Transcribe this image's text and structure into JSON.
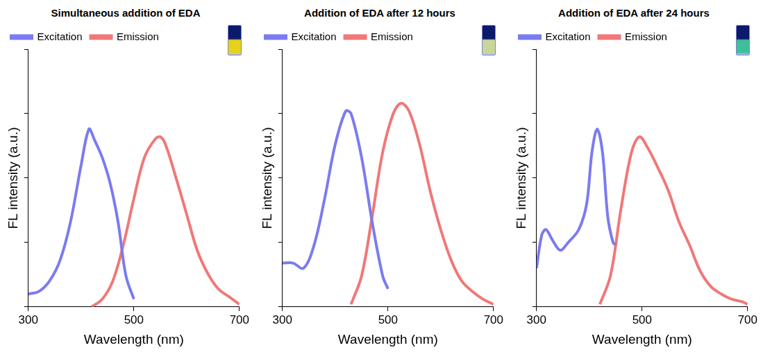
{
  "chart_data": [
    {
      "type": "line",
      "title": "Simultaneous addition of EDA",
      "x_label": "Wavelength (nm)",
      "y_label": "FL intensity (a.u.)",
      "xlim": [
        300,
        700
      ],
      "xticks": [
        300,
        500,
        700
      ],
      "ylim": [
        0,
        100
      ],
      "yticks": [
        0,
        25,
        50,
        75,
        100
      ],
      "tick_labels": "x",
      "grid": false,
      "legend": "top",
      "series": [
        {
          "name": "Excitation",
          "color": "#7b7bf0",
          "x": [
            300,
            320,
            340,
            360,
            380,
            400,
            415,
            425,
            440,
            455,
            470,
            485,
            500
          ],
          "values": [
            5,
            6,
            10,
            18,
            33,
            55,
            69,
            65,
            58,
            48,
            33,
            12,
            3
          ]
        },
        {
          "name": "Emission",
          "color": "#f07878",
          "x": [
            420,
            440,
            460,
            480,
            500,
            520,
            540,
            550,
            560,
            580,
            600,
            620,
            640,
            660,
            680,
            700
          ],
          "values": [
            0,
            3,
            10,
            24,
            42,
            58,
            65,
            66,
            63,
            50,
            36,
            22,
            13,
            7,
            4,
            1
          ]
        }
      ]
    },
    {
      "type": "line",
      "title": "Addition of EDA after 12 hours",
      "x_label": "Wavelength (nm)",
      "y_label": "FL intensity (a.u.)",
      "xlim": [
        300,
        700
      ],
      "xticks": [
        300,
        500,
        700
      ],
      "ylim": [
        0,
        100
      ],
      "yticks": [
        0,
        25,
        50,
        75,
        100
      ],
      "tick_labels": "x",
      "grid": false,
      "legend": "top",
      "series": [
        {
          "name": "Excitation",
          "color": "#7b7bf0",
          "x": [
            300,
            320,
            340,
            360,
            380,
            400,
            420,
            430,
            450,
            470,
            490,
            500
          ],
          "values": [
            17,
            17,
            15,
            24,
            42,
            63,
            76,
            75,
            58,
            33,
            12,
            7
          ]
        },
        {
          "name": "Emission",
          "color": "#f07878",
          "x": [
            430,
            450,
            470,
            490,
            510,
            525,
            540,
            560,
            580,
            600,
            620,
            640,
            660,
            680,
            700
          ],
          "values": [
            1,
            12,
            35,
            60,
            75,
            79,
            76,
            63,
            45,
            30,
            18,
            10,
            6,
            3,
            1
          ]
        }
      ]
    },
    {
      "type": "line",
      "title": "Addition of EDA after 24 hours",
      "x_label": "Wavelength (nm)",
      "y_label": "FL intensity (a.u.)",
      "xlim": [
        300,
        700
      ],
      "xticks": [
        300,
        500,
        700
      ],
      "ylim": [
        0,
        100
      ],
      "yticks": [
        0,
        25,
        50,
        75,
        100
      ],
      "tick_labels": "x",
      "grid": false,
      "legend": "top",
      "series": [
        {
          "name": "Excitation",
          "color": "#7b7bf0",
          "x": [
            300,
            310,
            318,
            330,
            345,
            360,
            380,
            395,
            405,
            415,
            425,
            435,
            445,
            450
          ],
          "values": [
            15,
            28,
            30,
            26,
            22,
            25,
            30,
            40,
            60,
            69,
            60,
            35,
            25,
            24
          ]
        },
        {
          "name": "Emission",
          "color": "#f07878",
          "x": [
            420,
            440,
            460,
            480,
            495,
            510,
            530,
            550,
            570,
            590,
            610,
            630,
            650,
            670,
            690,
            700
          ],
          "values": [
            1,
            12,
            38,
            60,
            66,
            62,
            54,
            45,
            33,
            24,
            14,
            8,
            5,
            3,
            2,
            1
          ]
        }
      ]
    }
  ]
}
